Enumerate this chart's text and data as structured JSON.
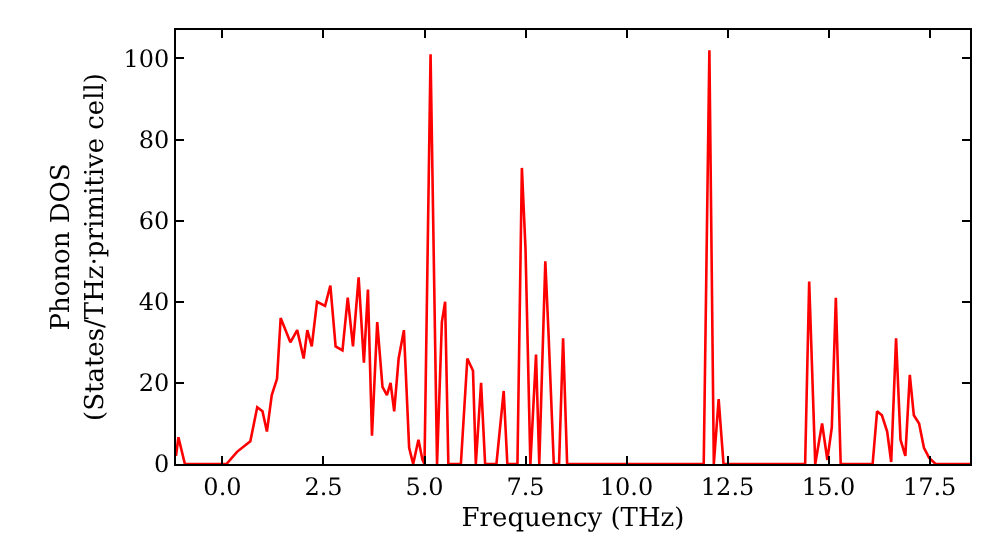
{
  "chart_data": {
    "type": "line",
    "xlabel": "Frequency (THz)",
    "ylabel": "Phonon DOS\n(States/THz·primitive cell)",
    "x": [
      -1.15,
      -1.09,
      -0.93,
      0.1,
      0.36,
      0.69,
      0.86,
      0.99,
      1.1,
      1.22,
      1.35,
      1.44,
      1.68,
      1.85,
      2.01,
      2.1,
      2.21,
      2.34,
      2.54,
      2.67,
      2.8,
      2.97,
      3.1,
      3.23,
      3.37,
      3.5,
      3.6,
      3.7,
      3.83,
      3.96,
      4.07,
      4.16,
      4.25,
      4.36,
      4.49,
      4.62,
      4.72,
      4.85,
      4.95,
      5.0,
      5.15,
      5.31,
      5.43,
      5.51,
      5.59,
      5.9,
      6.06,
      6.2,
      6.27,
      6.4,
      6.5,
      6.78,
      6.96,
      7.05,
      7.3,
      7.41,
      7.5,
      7.62,
      7.76,
      7.84,
      7.99,
      8.07,
      8.2,
      8.33,
      8.43,
      8.53,
      11.91,
      12.05,
      12.16,
      12.28,
      12.4,
      14.42,
      14.52,
      14.67,
      14.84,
      14.97,
      15.08,
      15.18,
      15.3,
      16.09,
      16.2,
      16.32,
      16.45,
      16.55,
      16.67,
      16.78,
      16.9,
      17.01,
      17.11,
      17.24,
      17.36,
      17.49,
      17.65,
      18.5
    ],
    "series": [
      {
        "color": "#ff0000",
        "values": [
          2,
          6.6,
          0,
          0,
          3,
          5.6,
          14,
          13,
          8,
          17,
          21,
          36,
          30,
          33,
          26,
          33,
          29,
          40,
          39,
          44,
          29,
          28,
          41,
          29,
          46,
          25,
          43,
          7,
          35,
          19,
          17,
          20,
          13,
          26,
          33,
          4,
          0,
          6,
          1,
          0,
          101,
          0,
          35,
          40,
          0,
          0,
          26,
          23,
          0,
          20,
          0,
          0,
          18,
          0,
          0,
          73,
          53,
          0,
          27,
          0,
          50,
          32,
          0,
          0,
          31,
          0,
          0,
          102,
          0,
          16,
          0,
          0,
          45,
          0,
          10,
          1,
          9,
          41,
          0,
          0,
          13,
          12,
          8,
          0.5,
          31,
          6,
          2,
          22,
          12,
          10,
          4,
          1.5,
          0,
          0
        ]
      }
    ],
    "xlim": [
      -1.15,
      18.5
    ],
    "ylim": [
      0,
      107
    ],
    "xticks": [
      {
        "value": 0,
        "label": "0.0"
      },
      {
        "value": 2.5,
        "label": "2.5"
      },
      {
        "value": 5,
        "label": "5.0"
      },
      {
        "value": 7.5,
        "label": "7.5"
      },
      {
        "value": 10,
        "label": "10.0"
      },
      {
        "value": 12.5,
        "label": "12.5"
      },
      {
        "value": 15,
        "label": "15.0"
      },
      {
        "value": 17.5,
        "label": "17.5"
      }
    ],
    "yticks": [
      0,
      20,
      40,
      60,
      80,
      100
    ],
    "marker": "none",
    "line_style": "solid"
  }
}
